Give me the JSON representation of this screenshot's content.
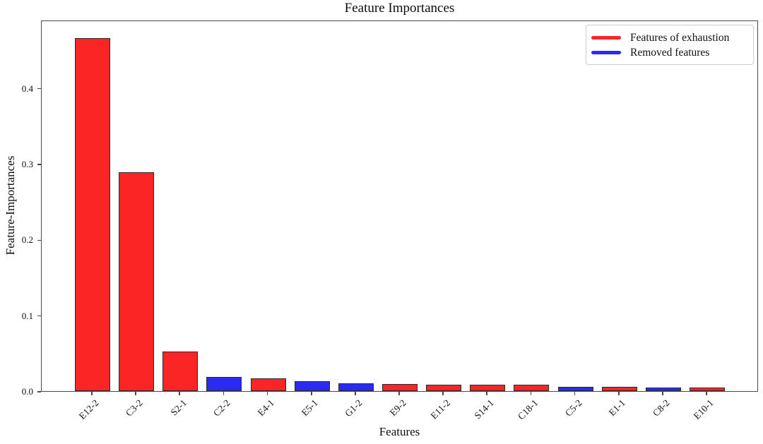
{
  "chart_data": {
    "type": "bar",
    "title": "Feature Importances",
    "xlabel": "Features",
    "ylabel": "Feature-Importances",
    "categories": [
      "E12-2",
      "C3-2",
      "S2-1",
      "C2-2",
      "E4-1",
      "E5-1",
      "G1-2",
      "E9-2",
      "E11-2",
      "S14-1",
      "C18-1",
      "C5-2",
      "E1-1",
      "C8-2",
      "E10-1"
    ],
    "values": [
      0.466,
      0.289,
      0.052,
      0.019,
      0.017,
      0.013,
      0.01,
      0.009,
      0.0085,
      0.008,
      0.008,
      0.006,
      0.0055,
      0.005,
      0.0045
    ],
    "bar_groups": [
      "red",
      "red",
      "red",
      "blue",
      "red",
      "blue",
      "blue",
      "red",
      "red",
      "red",
      "red",
      "blue",
      "red",
      "blue",
      "red"
    ],
    "group_colors": {
      "red": "#fb2525",
      "blue": "#2a2af0"
    },
    "bar_edge_color": "#2d2d2d",
    "ylim": [
      0,
      0.49
    ],
    "yticks": [
      0.0,
      0.1,
      0.2,
      0.3,
      0.4
    ],
    "ytick_labels": [
      "0.0",
      "0.1",
      "0.2",
      "0.3",
      "0.4"
    ],
    "grid": false,
    "legend_position": "upper right",
    "legend": [
      {
        "label": "Features of exhaustion",
        "group": "red"
      },
      {
        "label": "Removed features",
        "group": "blue"
      }
    ]
  }
}
